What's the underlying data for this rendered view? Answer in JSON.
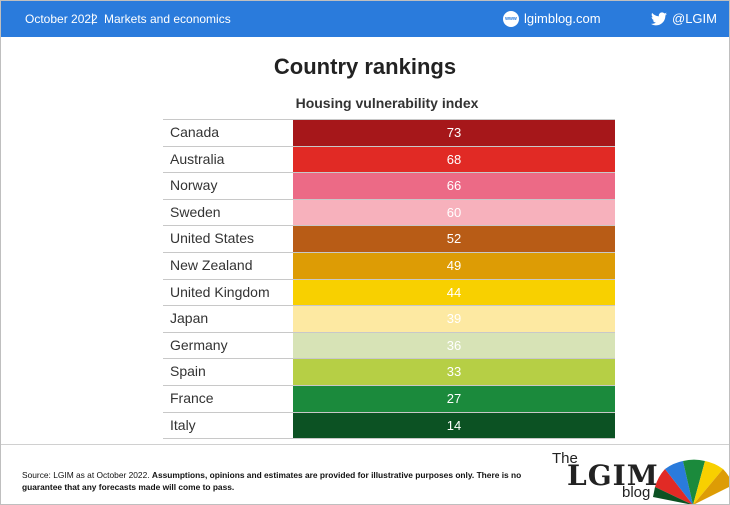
{
  "header": {
    "date": "October 2022",
    "separator": "|",
    "category": "Markets and economics",
    "site_icon_text": "www",
    "site": "lgimblog.com",
    "twitter_handle": "@LGIM"
  },
  "chart_data": {
    "type": "table",
    "title": "Country rankings",
    "subtitle": "Housing vulnerability index",
    "rows": [
      {
        "country": "Canada",
        "value": 73,
        "color": "#a6171a"
      },
      {
        "country": "Australia",
        "value": 68,
        "color": "#e12a25"
      },
      {
        "country": "Norway",
        "value": 66,
        "color": "#ec6a86"
      },
      {
        "country": "Sweden",
        "value": 60,
        "color": "#f7b1bc"
      },
      {
        "country": "United States",
        "value": 52,
        "color": "#b85c16"
      },
      {
        "country": "New Zealand",
        "value": 49,
        "color": "#dd9c05"
      },
      {
        "country": "United Kingdom",
        "value": 44,
        "color": "#f8d000"
      },
      {
        "country": "Japan",
        "value": 39,
        "color": "#fde9a2"
      },
      {
        "country": "Germany",
        "value": 36,
        "color": "#d7e3b6"
      },
      {
        "country": "Spain",
        "value": 33,
        "color": "#b6cf45"
      },
      {
        "country": "France",
        "value": 27,
        "color": "#1b8a3c"
      },
      {
        "country": "Italy",
        "value": 14,
        "color": "#0c5223"
      }
    ]
  },
  "footer": {
    "source_plain": "Source: LGIM as at October 2022.",
    "source_bold": "Assumptions, opinions and estimates are provided for illustrative purposes only. There is no guarantee that any forecasts made will come to pass.",
    "logo_the": "The",
    "logo_lgim": "LGIM",
    "logo_blog": "blog"
  }
}
